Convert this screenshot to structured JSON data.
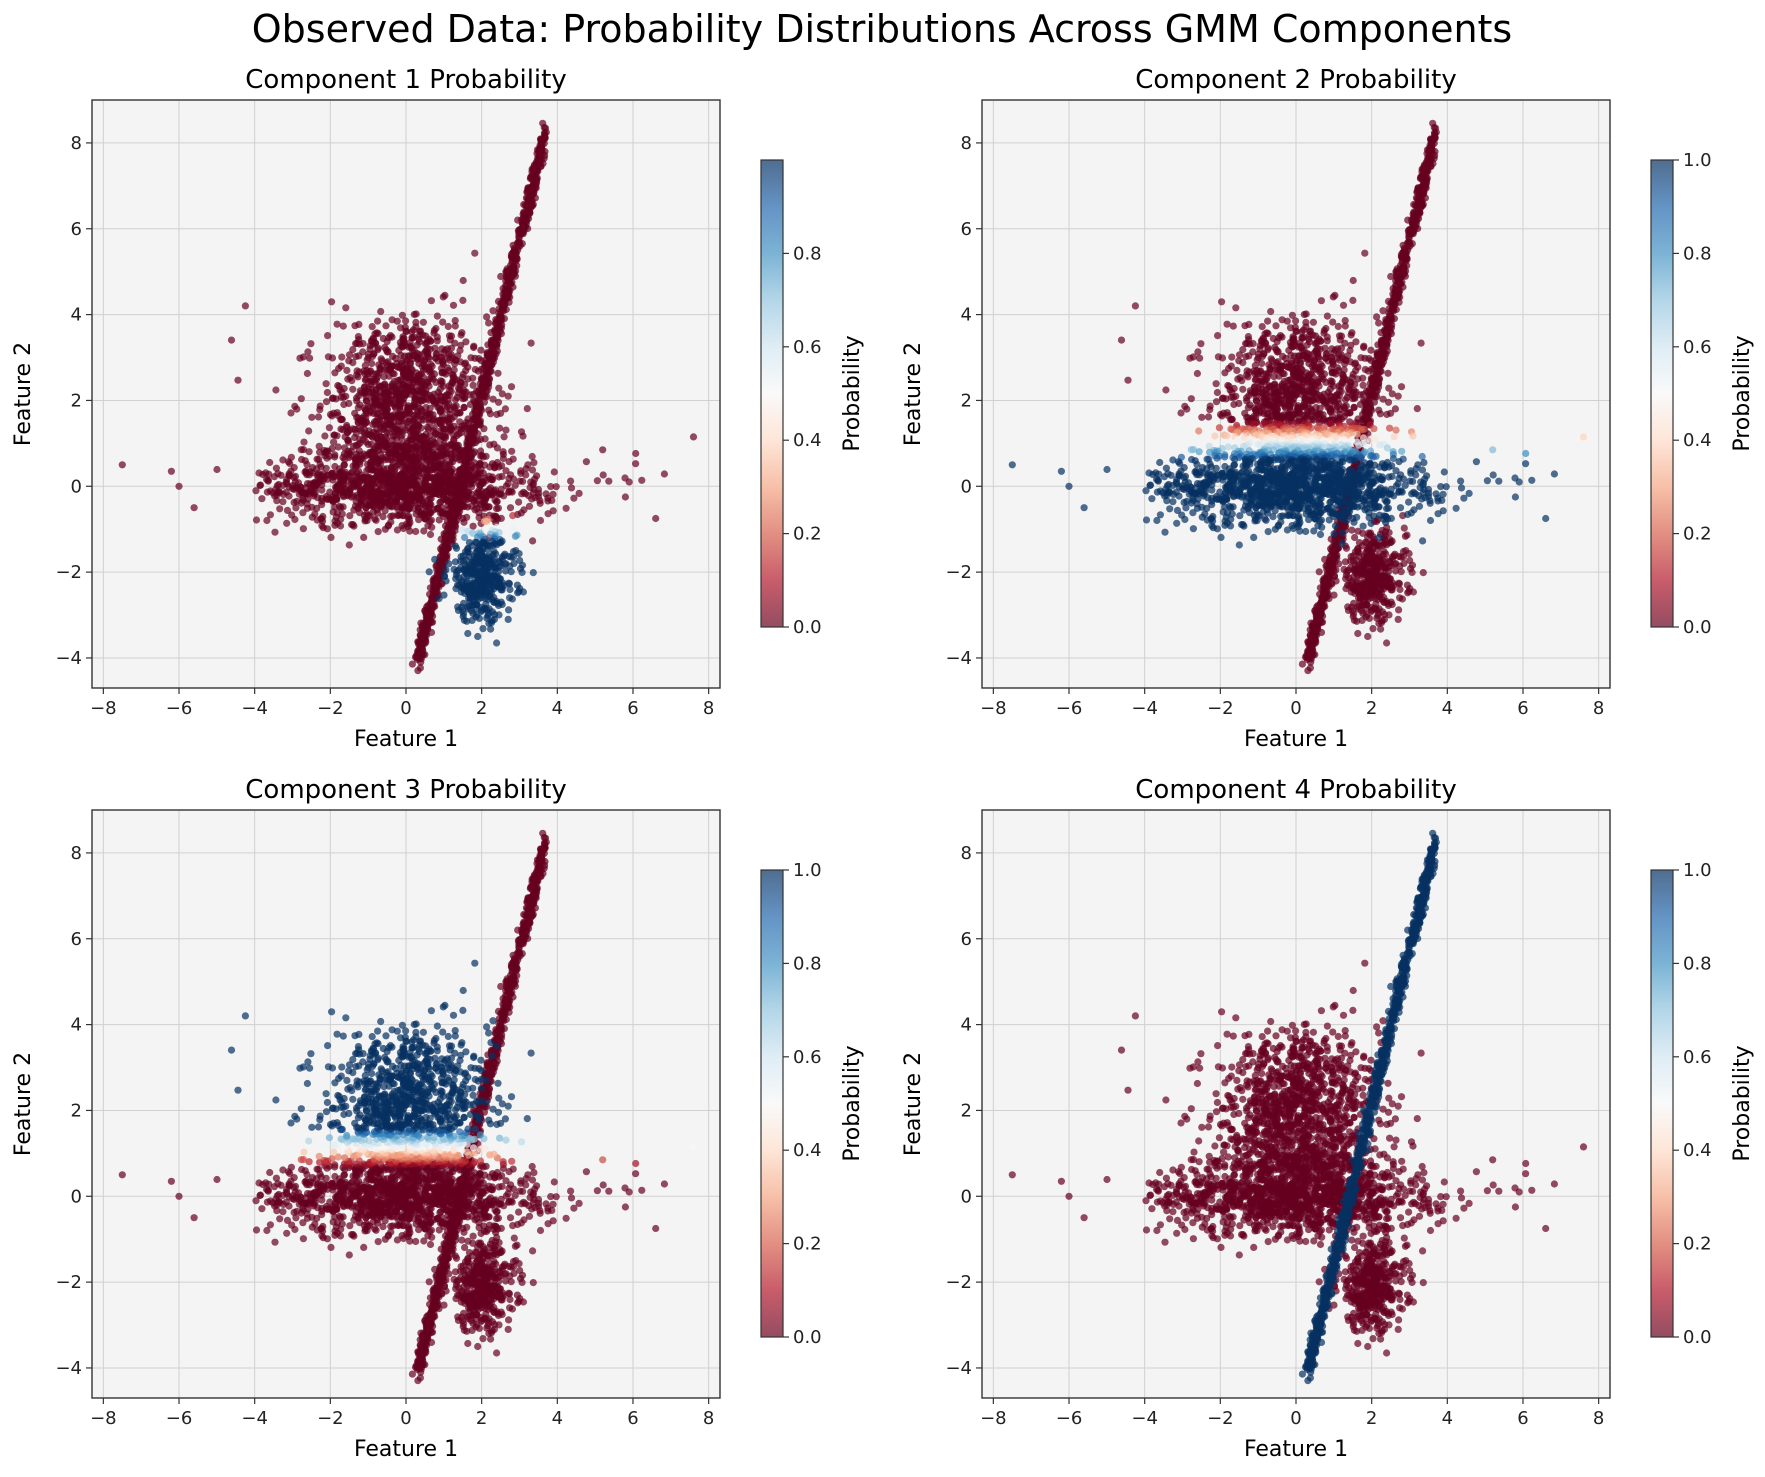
{
  "figure": {
    "suptitle": "Observed Data: Probability Distributions Across GMM Components"
  },
  "chart_data": [
    {
      "type": "scatter",
      "title": "Component 1 Probability",
      "xlabel": "Feature 1",
      "ylabel": "Feature 2",
      "xlim": [
        -8.3,
        8.3
      ],
      "ylim": [
        -4.7,
        9.0
      ],
      "xticks": [
        -8,
        -6,
        -4,
        -2,
        0,
        2,
        4,
        6,
        8
      ],
      "yticks": [
        -4,
        -2,
        0,
        2,
        4,
        6,
        8
      ],
      "grid": true,
      "colormap": "RdBu",
      "colorbar": {
        "label": "Probability",
        "range": [
          0.0,
          1.0
        ],
        "ticks": [
          0.0,
          0.2,
          0.4,
          0.6,
          0.8
        ]
      },
      "high_probability_cluster": "lower cluster centered near (2.0, -2.1)"
    },
    {
      "type": "scatter",
      "title": "Component 2 Probability",
      "xlabel": "Feature 1",
      "ylabel": "Feature 2",
      "xlim": [
        -8.3,
        8.3
      ],
      "ylim": [
        -4.7,
        9.0
      ],
      "xticks": [
        -8,
        -6,
        -4,
        -2,
        0,
        2,
        4,
        6,
        8
      ],
      "yticks": [
        -4,
        -2,
        0,
        2,
        4,
        6,
        8
      ],
      "grid": true,
      "colormap": "RdBu",
      "colorbar": {
        "label": "Probability",
        "range": [
          0.0,
          1.0
        ],
        "ticks": [
          0.0,
          0.2,
          0.4,
          0.6,
          0.8,
          1.0
        ]
      },
      "high_probability_cluster": "horizontal band centered near (0, 0)"
    },
    {
      "type": "scatter",
      "title": "Component 3 Probability",
      "xlabel": "Feature 1",
      "ylabel": "Feature 2",
      "xlim": [
        -8.3,
        8.3
      ],
      "ylim": [
        -4.7,
        9.0
      ],
      "xticks": [
        -8,
        -6,
        -4,
        -2,
        0,
        2,
        4,
        6,
        8
      ],
      "yticks": [
        -4,
        -2,
        0,
        2,
        4,
        6,
        8
      ],
      "grid": true,
      "colormap": "RdBu",
      "colorbar": {
        "label": "Probability",
        "range": [
          0.0,
          1.0
        ],
        "ticks": [
          0.0,
          0.2,
          0.4,
          0.6,
          0.8,
          1.0
        ]
      },
      "high_probability_cluster": "upper cluster centered near (0, 2.2)"
    },
    {
      "type": "scatter",
      "title": "Component 4 Probability",
      "xlabel": "Feature 1",
      "ylabel": "Feature 2",
      "xlim": [
        -8.3,
        8.3
      ],
      "ylim": [
        -4.7,
        9.0
      ],
      "xticks": [
        -8,
        -6,
        -4,
        -2,
        0,
        2,
        4,
        6,
        8
      ],
      "yticks": [
        -4,
        -2,
        0,
        2,
        4,
        6,
        8
      ],
      "grid": true,
      "colormap": "RdBu",
      "colorbar": {
        "label": "Probability",
        "range": [
          0.0,
          1.0
        ],
        "ticks": [
          0.0,
          0.2,
          0.4,
          0.6,
          0.8,
          1.0
        ]
      },
      "high_probability_cluster": "diagonal line from (0.3, -4.1) to (3.7, 8.3)"
    }
  ]
}
